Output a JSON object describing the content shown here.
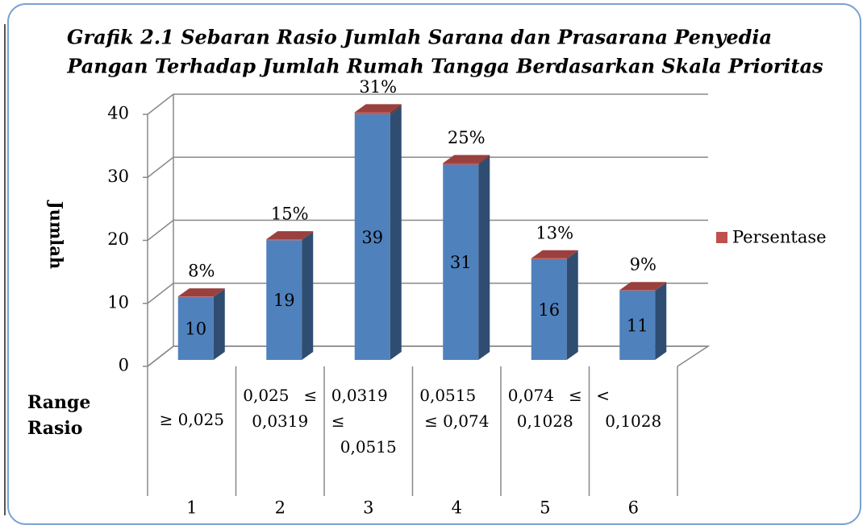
{
  "chart_data": {
    "type": "bar3d",
    "title": [
      "Grafik 2.1  Sebaran Rasio Jumlah Sarana  dan Prasarana Penyedia",
      "Pangan  Terhadap Jumlah Rumah Tangga Berdasarkan Skala Prioritas"
    ],
    "y_label": "Jumlah",
    "x_group_label": "Range Rasio",
    "range_labels": [
      "≥  0,025",
      "0,025 ≤ 0,0319",
      "0,0319 ≤ 0,0515",
      "0,0515 ≤ 0,074",
      "0,074 ≤ 0,1028",
      "< 0,1028"
    ],
    "categories": [
      "1",
      "2",
      "3",
      "4",
      "5",
      "6"
    ],
    "series": [
      {
        "color": "#4f81bd",
        "values": [
          10,
          19,
          39,
          31,
          16,
          11
        ]
      },
      {
        "name": "Persentase",
        "color": "#c0504d",
        "values": [
          0.08,
          0.15,
          0.31,
          0.25,
          0.13,
          0.09
        ],
        "value_labels": [
          "8%",
          "15%",
          "31%",
          "25%",
          "13%",
          "9%"
        ]
      }
    ],
    "ylim": [
      0,
      40
    ],
    "yticks": [
      0,
      10,
      20,
      30,
      40
    ],
    "grid": true,
    "legend": "right"
  }
}
